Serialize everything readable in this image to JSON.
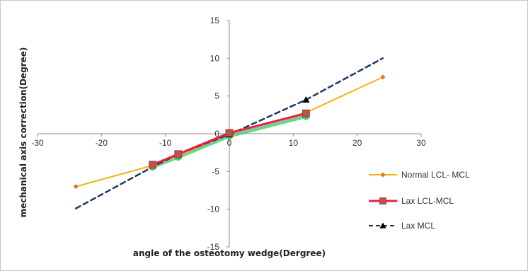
{
  "chart_data": {
    "type": "line",
    "title": "",
    "xlabel": "angle of the osteotomy wedge(Dergree)",
    "ylabel": "mechanical axis correction(Degree)",
    "xlim": [
      -30,
      30
    ],
    "ylim": [
      -15,
      15
    ],
    "xticks": [
      "-30",
      "-20",
      "-10",
      "0",
      "10",
      "20",
      "30"
    ],
    "yticks": [
      "-15",
      "-10",
      "-5",
      "0",
      "5",
      "10",
      "15"
    ],
    "grid": false,
    "legend_position": "right",
    "series": [
      {
        "name": "Normal LCL- MCL",
        "color": "#F2B40C",
        "marker": "diamond",
        "marker_color": "#D8762F",
        "line_style": "solid",
        "x": [
          -24,
          -12,
          -8,
          0,
          12,
          24
        ],
        "y": [
          -7.0,
          -4.2,
          -2.9,
          0.0,
          2.8,
          7.5
        ]
      },
      {
        "name": "Lax LCL-MCL",
        "color": "#EE1C4A",
        "marker": "square",
        "marker_color": "#C0504D",
        "line_style": "solid",
        "x": [
          -12,
          -8,
          0,
          12
        ],
        "y": [
          -4.1,
          -2.7,
          0.1,
          2.7
        ]
      },
      {
        "name": "Lax MCL",
        "color": "#1F3864",
        "marker": "triangle",
        "marker_color": "#000000",
        "line_style": "dashed",
        "x": [
          -24,
          -12,
          -8,
          0,
          12,
          24
        ],
        "y": [
          -9.9,
          -4.4,
          -2.7,
          -0.1,
          4.5,
          10.0
        ]
      },
      {
        "name": "",
        "color": "#3CC864",
        "marker": "circle",
        "marker_color": "#3CC864",
        "line_style": "solid",
        "x": [
          -12,
          -8,
          0,
          12
        ],
        "y": [
          -4.4,
          -3.1,
          -0.3,
          2.3
        ]
      }
    ]
  }
}
